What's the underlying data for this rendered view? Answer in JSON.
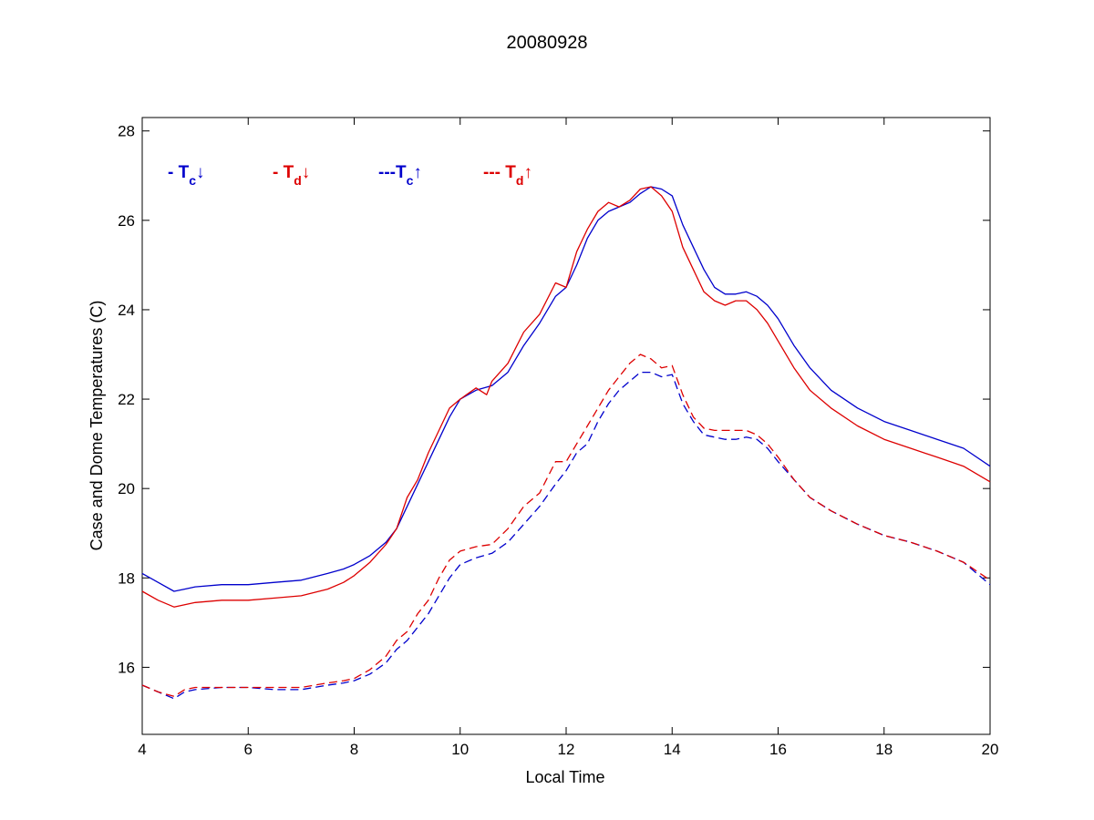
{
  "chart_data": {
    "type": "line",
    "title": "20080928",
    "xlabel": "Local Time",
    "ylabel": "Case and Dome Temperatures (C)",
    "xlim": [
      4,
      20
    ],
    "ylim": [
      14.5,
      28.3
    ],
    "xticks": [
      "4",
      "6",
      "8",
      "10",
      "12",
      "14",
      "16",
      "18",
      "20"
    ],
    "yticks": [
      "16",
      "18",
      "20",
      "22",
      "24",
      "26",
      "28"
    ],
    "grid": false,
    "legend_position": "top-left",
    "series": [
      {
        "name": "- Tc↓",
        "legend_prefix": "- T",
        "legend_sub": "c",
        "legend_arrow": "↓",
        "color": "#0000cc",
        "dash": "solid",
        "x": [
          4.0,
          4.3,
          4.6,
          4.8,
          5.0,
          5.5,
          6.0,
          6.5,
          7.0,
          7.5,
          7.8,
          8.0,
          8.3,
          8.6,
          8.8,
          9.0,
          9.2,
          9.4,
          9.6,
          9.8,
          10.0,
          10.3,
          10.6,
          10.9,
          11.2,
          11.5,
          11.8,
          12.0,
          12.2,
          12.4,
          12.6,
          12.8,
          13.0,
          13.2,
          13.4,
          13.6,
          13.8,
          14.0,
          14.2,
          14.4,
          14.6,
          14.8,
          15.0,
          15.2,
          15.4,
          15.6,
          15.8,
          16.0,
          16.3,
          16.6,
          17.0,
          17.5,
          18.0,
          18.5,
          19.0,
          19.5,
          20.0
        ],
        "y": [
          18.1,
          17.9,
          17.7,
          17.75,
          17.8,
          17.85,
          17.85,
          17.9,
          17.95,
          18.1,
          18.2,
          18.3,
          18.5,
          18.8,
          19.1,
          19.6,
          20.1,
          20.6,
          21.1,
          21.6,
          22.0,
          22.2,
          22.3,
          22.6,
          23.2,
          23.7,
          24.3,
          24.5,
          25.0,
          25.6,
          26.0,
          26.2,
          26.3,
          26.4,
          26.6,
          26.75,
          26.7,
          26.55,
          25.9,
          25.4,
          24.9,
          24.5,
          24.35,
          24.35,
          24.4,
          24.3,
          24.1,
          23.8,
          23.2,
          22.7,
          22.2,
          21.8,
          21.5,
          21.3,
          21.1,
          20.9,
          20.5
        ]
      },
      {
        "name": "- Td↓",
        "legend_prefix": "- T",
        "legend_sub": "d",
        "legend_arrow": "↓",
        "color": "#dd0000",
        "dash": "solid",
        "x": [
          4.0,
          4.3,
          4.6,
          4.8,
          5.0,
          5.5,
          6.0,
          6.5,
          7.0,
          7.5,
          7.8,
          8.0,
          8.3,
          8.6,
          8.8,
          9.0,
          9.2,
          9.4,
          9.6,
          9.8,
          10.0,
          10.3,
          10.5,
          10.6,
          10.9,
          11.2,
          11.5,
          11.8,
          12.0,
          12.2,
          12.4,
          12.6,
          12.8,
          13.0,
          13.2,
          13.4,
          13.6,
          13.8,
          14.0,
          14.2,
          14.4,
          14.6,
          14.8,
          15.0,
          15.2,
          15.4,
          15.6,
          15.8,
          16.0,
          16.3,
          16.6,
          17.0,
          17.5,
          18.0,
          18.5,
          19.0,
          19.5,
          20.0
        ],
        "y": [
          17.7,
          17.5,
          17.35,
          17.4,
          17.45,
          17.5,
          17.5,
          17.55,
          17.6,
          17.75,
          17.9,
          18.05,
          18.35,
          18.75,
          19.1,
          19.8,
          20.2,
          20.8,
          21.3,
          21.8,
          22.0,
          22.25,
          22.1,
          22.4,
          22.8,
          23.5,
          23.9,
          24.6,
          24.5,
          25.3,
          25.8,
          26.2,
          26.4,
          26.3,
          26.45,
          26.7,
          26.75,
          26.55,
          26.2,
          25.4,
          24.9,
          24.4,
          24.2,
          24.1,
          24.2,
          24.2,
          24.0,
          23.7,
          23.3,
          22.7,
          22.2,
          21.8,
          21.4,
          21.1,
          20.9,
          20.7,
          20.5,
          20.15
        ]
      },
      {
        "name": "---Tc↑",
        "legend_prefix": "---T",
        "legend_sub": "c",
        "legend_arrow": "↑",
        "color": "#0000cc",
        "dash": "dashed",
        "x": [
          4.0,
          4.3,
          4.6,
          4.8,
          5.0,
          5.5,
          6.0,
          6.5,
          7.0,
          7.5,
          7.8,
          8.0,
          8.3,
          8.6,
          8.8,
          9.0,
          9.2,
          9.4,
          9.6,
          9.8,
          10.0,
          10.3,
          10.6,
          10.9,
          11.2,
          11.5,
          11.8,
          12.0,
          12.2,
          12.4,
          12.6,
          12.8,
          13.0,
          13.2,
          13.4,
          13.6,
          13.8,
          14.0,
          14.2,
          14.4,
          14.6,
          14.8,
          15.0,
          15.2,
          15.4,
          15.6,
          15.8,
          16.0,
          16.3,
          16.6,
          17.0,
          17.5,
          18.0,
          18.5,
          19.0,
          19.5,
          20.0
        ],
        "y": [
          15.6,
          15.45,
          15.3,
          15.45,
          15.5,
          15.55,
          15.55,
          15.5,
          15.5,
          15.6,
          15.65,
          15.7,
          15.85,
          16.1,
          16.4,
          16.6,
          16.9,
          17.2,
          17.6,
          18.0,
          18.3,
          18.45,
          18.55,
          18.8,
          19.2,
          19.6,
          20.1,
          20.4,
          20.8,
          21.0,
          21.5,
          21.9,
          22.2,
          22.4,
          22.6,
          22.6,
          22.5,
          22.55,
          21.9,
          21.5,
          21.2,
          21.15,
          21.1,
          21.1,
          21.15,
          21.1,
          20.9,
          20.6,
          20.2,
          19.8,
          19.5,
          19.2,
          18.95,
          18.8,
          18.6,
          18.35,
          17.85
        ]
      },
      {
        "name": "--- Td↑",
        "legend_prefix": "--- T",
        "legend_sub": "d",
        "legend_arrow": "↑",
        "color": "#dd0000",
        "dash": "dashed",
        "x": [
          4.0,
          4.3,
          4.6,
          4.8,
          5.0,
          5.5,
          6.0,
          6.5,
          7.0,
          7.5,
          7.8,
          8.0,
          8.3,
          8.6,
          8.8,
          9.0,
          9.2,
          9.4,
          9.6,
          9.8,
          10.0,
          10.3,
          10.6,
          10.9,
          11.2,
          11.5,
          11.8,
          12.0,
          12.2,
          12.4,
          12.6,
          12.8,
          13.0,
          13.2,
          13.4,
          13.6,
          13.8,
          14.0,
          14.2,
          14.4,
          14.6,
          14.8,
          15.0,
          15.2,
          15.4,
          15.6,
          15.8,
          16.0,
          16.3,
          16.6,
          17.0,
          17.5,
          18.0,
          18.5,
          19.0,
          19.5,
          20.0
        ],
        "y": [
          15.6,
          15.45,
          15.35,
          15.5,
          15.55,
          15.55,
          15.55,
          15.55,
          15.55,
          15.65,
          15.7,
          15.75,
          15.95,
          16.25,
          16.6,
          16.8,
          17.2,
          17.5,
          18.0,
          18.4,
          18.6,
          18.7,
          18.75,
          19.1,
          19.6,
          19.9,
          20.6,
          20.6,
          21.0,
          21.4,
          21.8,
          22.2,
          22.5,
          22.8,
          23.0,
          22.9,
          22.7,
          22.75,
          22.1,
          21.6,
          21.35,
          21.3,
          21.3,
          21.3,
          21.3,
          21.2,
          21.0,
          20.7,
          20.2,
          19.8,
          19.5,
          19.2,
          18.95,
          18.8,
          18.6,
          18.35,
          17.95
        ]
      }
    ]
  }
}
